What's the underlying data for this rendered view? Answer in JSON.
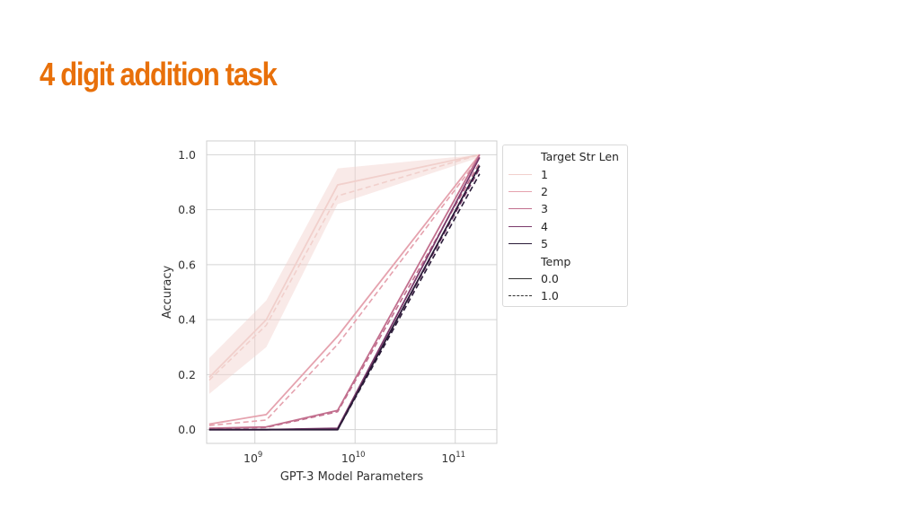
{
  "slide": {
    "title": "4 digit addition task",
    "title_color": "#E8700A"
  },
  "chart_data": {
    "type": "line",
    "title": "",
    "xlabel": "GPT-3 Model Parameters",
    "ylabel": "Accuracy",
    "xscale": "log",
    "xlim": [
      330000000.0,
      260000000000.0
    ],
    "ylim": [
      -0.05,
      1.05
    ],
    "x": [
      350000000.0,
      1300000000.0,
      6700000000.0,
      175000000000.0
    ],
    "x_ticks": [
      {
        "value": 1000000000.0,
        "base": "10",
        "exp": "9"
      },
      {
        "value": 10000000000.0,
        "base": "10",
        "exp": "10"
      },
      {
        "value": 100000000000.0,
        "base": "10",
        "exp": "11"
      }
    ],
    "y_ticks": [
      "0.0",
      "0.2",
      "0.4",
      "0.6",
      "0.8",
      "1.0"
    ],
    "grid": true,
    "legend_position": "outside right",
    "legend": {
      "hue_title": "Target Str Len",
      "style_title": "Temp",
      "style_entries": [
        {
          "label": "0.0",
          "dash": "solid"
        },
        {
          "label": "1.0",
          "dash": "dashed"
        }
      ]
    },
    "series": [
      {
        "name": "1",
        "color": "#F1D0CC",
        "temp_0_0": [
          0.19,
          0.4,
          0.89,
          1.0
        ],
        "temp_1_0": [
          0.18,
          0.38,
          0.85,
          1.0
        ],
        "band": {
          "lower": [
            0.13,
            0.3,
            0.82,
            0.99
          ],
          "upper": [
            0.26,
            0.47,
            0.95,
            1.0
          ]
        }
      },
      {
        "name": "2",
        "color": "#E5A2AE",
        "temp_0_0": [
          0.02,
          0.055,
          0.34,
          1.0
        ],
        "temp_1_0": [
          0.015,
          0.035,
          0.31,
          0.99
        ]
      },
      {
        "name": "3",
        "color": "#C26F8E",
        "temp_0_0": [
          0.005,
          0.01,
          0.07,
          1.0
        ],
        "temp_1_0": [
          0.005,
          0.008,
          0.065,
          0.97
        ]
      },
      {
        "name": "4",
        "color": "#7A3A6B",
        "temp_0_0": [
          0.0,
          0.0,
          0.005,
          0.99
        ],
        "temp_1_0": [
          0.0,
          0.0,
          0.004,
          0.95
        ]
      },
      {
        "name": "5",
        "color": "#2A1B38",
        "temp_0_0": [
          0.0,
          0.0,
          0.0,
          0.96
        ],
        "temp_1_0": [
          0.0,
          0.0,
          0.0,
          0.93
        ]
      }
    ]
  }
}
